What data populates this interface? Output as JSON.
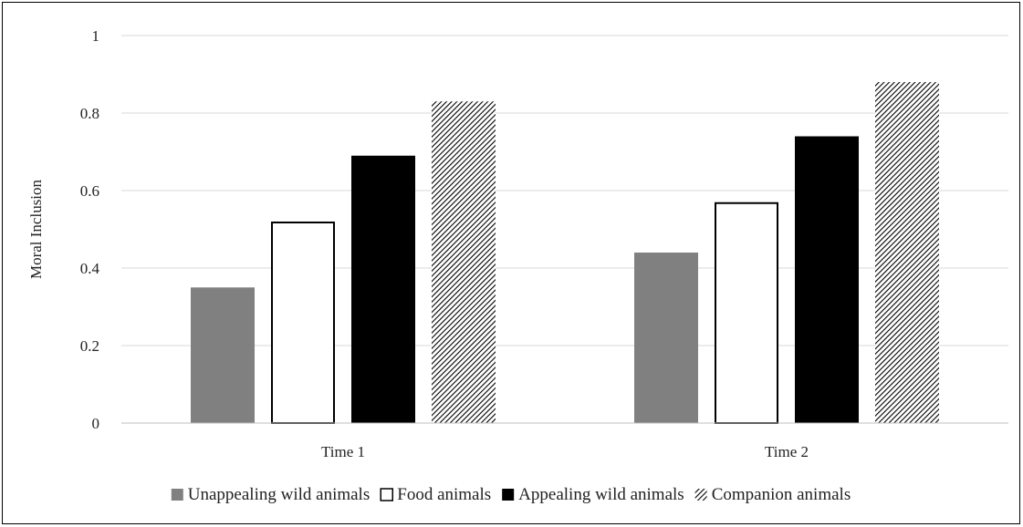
{
  "chart_data": {
    "type": "bar",
    "title": "",
    "xlabel": "",
    "ylabel": "Moral Inclusion",
    "ylim": [
      0,
      1
    ],
    "yticks": [
      0,
      0.2,
      0.4,
      0.6,
      0.8,
      1
    ],
    "ytick_labels": [
      "0",
      "0.2",
      "0.4",
      "0.6",
      "0.8",
      "1"
    ],
    "grid": true,
    "legend_position": "bottom",
    "categories": [
      "Time 1",
      "Time 2"
    ],
    "series": [
      {
        "name": "Unappealing wild animals",
        "values": [
          0.35,
          0.44
        ],
        "fill": "#808080",
        "style": "solid"
      },
      {
        "name": "Food animals",
        "values": [
          0.52,
          0.57
        ],
        "fill": "#ffffff",
        "style": "outline"
      },
      {
        "name": "Appealing wild animals",
        "values": [
          0.69,
          0.74
        ],
        "fill": "#000000",
        "style": "solid"
      },
      {
        "name": "Companion animals",
        "values": [
          0.83,
          0.88
        ],
        "fill": "#000000",
        "style": "hatch"
      }
    ]
  }
}
